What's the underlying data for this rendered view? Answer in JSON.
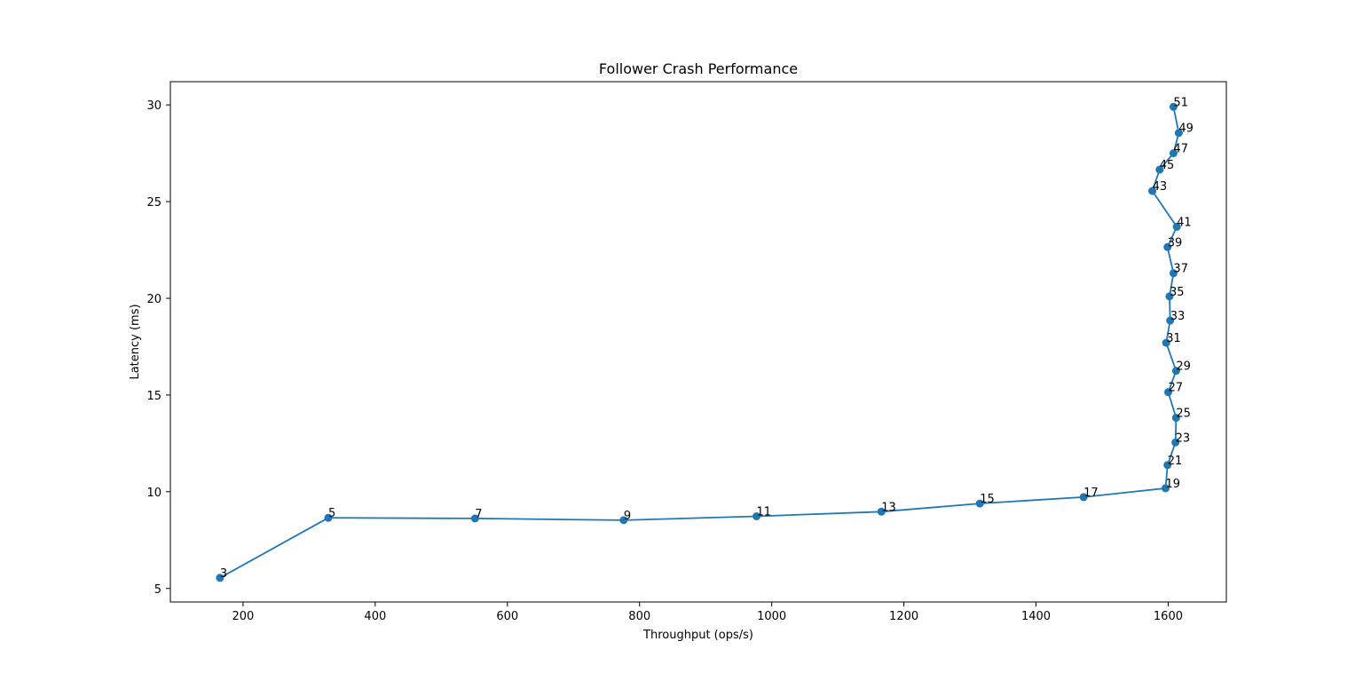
{
  "chart_data": {
    "type": "line",
    "title": "Follower Crash Performance",
    "xlabel": "Throughput (ops/s)",
    "ylabel": "Latency (ms)",
    "xlim": [
      90,
      1688
    ],
    "ylim": [
      4.3,
      31.2
    ],
    "xticks": [
      200,
      400,
      600,
      800,
      1000,
      1200,
      1400,
      1600
    ],
    "yticks": [
      5,
      10,
      15,
      20,
      25,
      30
    ],
    "grid": false,
    "series": [
      {
        "name": "latency",
        "color": "#1f77b4",
        "points": [
          {
            "x": 165,
            "y": 5.55,
            "label": "3"
          },
          {
            "x": 329,
            "y": 8.65,
            "label": "5"
          },
          {
            "x": 551,
            "y": 8.62,
            "label": "7"
          },
          {
            "x": 776,
            "y": 8.53,
            "label": "9"
          },
          {
            "x": 977,
            "y": 8.73,
            "label": "11"
          },
          {
            "x": 1166,
            "y": 8.97,
            "label": "13"
          },
          {
            "x": 1315,
            "y": 9.39,
            "label": "15"
          },
          {
            "x": 1472,
            "y": 9.72,
            "label": "17"
          },
          {
            "x": 1596,
            "y": 10.18,
            "label": "19"
          },
          {
            "x": 1599,
            "y": 11.38,
            "label": "21"
          },
          {
            "x": 1611,
            "y": 12.55,
            "label": "23"
          },
          {
            "x": 1612,
            "y": 13.82,
            "label": "25"
          },
          {
            "x": 1600,
            "y": 15.15,
            "label": "27"
          },
          {
            "x": 1612,
            "y": 16.25,
            "label": "29"
          },
          {
            "x": 1597,
            "y": 17.7,
            "label": "31"
          },
          {
            "x": 1603,
            "y": 18.85,
            "label": "33"
          },
          {
            "x": 1602,
            "y": 20.1,
            "label": "35"
          },
          {
            "x": 1608,
            "y": 21.3,
            "label": "37"
          },
          {
            "x": 1599,
            "y": 22.65,
            "label": "39"
          },
          {
            "x": 1613,
            "y": 23.7,
            "label": "41"
          },
          {
            "x": 1576,
            "y": 25.55,
            "label": "43"
          },
          {
            "x": 1587,
            "y": 26.65,
            "label": "45"
          },
          {
            "x": 1608,
            "y": 27.5,
            "label": "47"
          },
          {
            "x": 1616,
            "y": 28.55,
            "label": "49"
          },
          {
            "x": 1608,
            "y": 29.9,
            "label": "51"
          }
        ]
      }
    ]
  }
}
